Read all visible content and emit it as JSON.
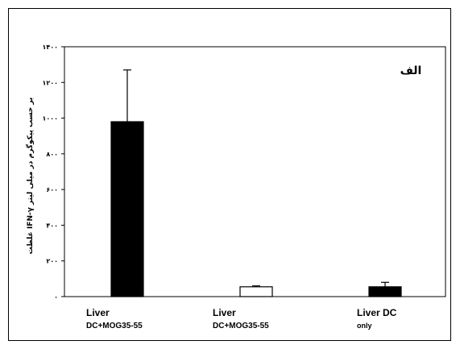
{
  "chart_data": {
    "type": "bar",
    "title": "",
    "panel_label": "الف",
    "ylabel": "غلظت IFN-γ بر حسب پیکوگرم در میلی لیتر",
    "xlabel": "",
    "ylim": [
      0,
      1400
    ],
    "y_ticks": [
      0,
      200,
      400,
      600,
      800,
      1000,
      1200,
      1400
    ],
    "y_tick_labels": [
      "۰",
      "۲۰۰",
      "۴۰۰",
      "۶۰۰",
      "۸۰۰",
      "۱۰۰۰",
      "۱۲۰۰",
      "۱۴۰۰"
    ],
    "categories": [
      {
        "line1": "Liver",
        "line2": "DC+MOG35-55"
      },
      {
        "line1": "Liver",
        "line2": "DC+MOG35-55"
      },
      {
        "line1": "Liver DC",
        "line2": "only"
      }
    ],
    "values": [
      980,
      55,
      55
    ],
    "errors": [
      290,
      5,
      25
    ],
    "bar_fill": [
      "#000000",
      "#ffffff",
      "#000000"
    ],
    "grid": false,
    "legend": "none"
  }
}
